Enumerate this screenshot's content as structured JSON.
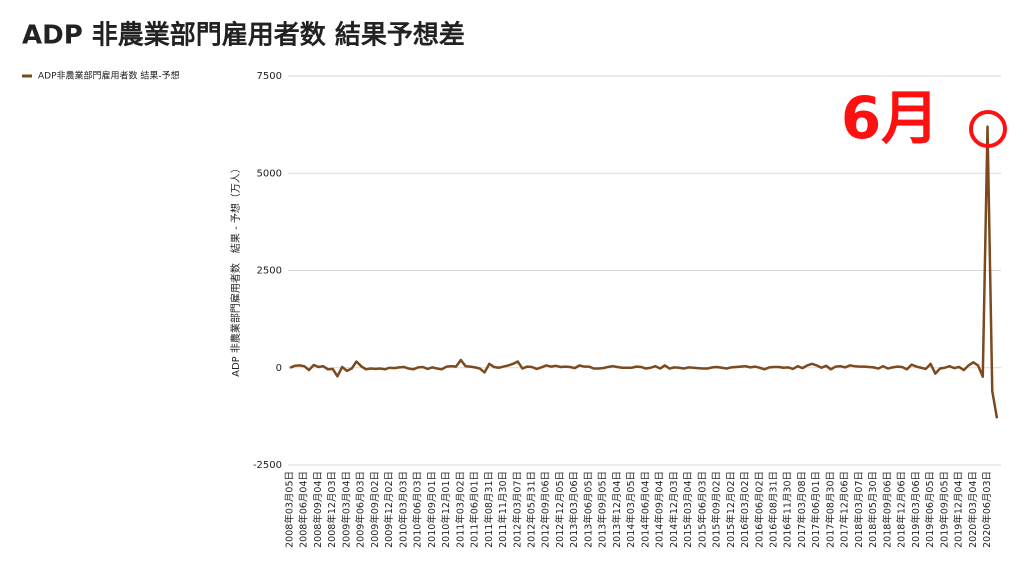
{
  "chart_data": {
    "type": "line",
    "title": "ADP 非農業部門雇用者数 結果予想差",
    "y_label": "ADP 非農業部門雇用者数　結果 - 予想（万人）",
    "annotation": "6月",
    "categories": [
      "2008年03月05日",
      null,
      null,
      "2008年06月04日",
      null,
      null,
      "2008年09月04日",
      null,
      null,
      "2008年12月03日",
      null,
      null,
      "2009年03月04日",
      null,
      null,
      "2009年06月03日",
      null,
      null,
      "2009年09月02日",
      null,
      null,
      "2009年12月02日",
      null,
      null,
      "2010年03月03日",
      null,
      null,
      "2010年06月03日",
      null,
      null,
      "2010年09月01日",
      null,
      null,
      "2010年12月01日",
      null,
      null,
      "2011年03月02日",
      null,
      null,
      "2011年06月01日",
      null,
      null,
      "2011年08月31日",
      null,
      null,
      "2011年11月30日",
      null,
      null,
      "2012年03月07日",
      null,
      null,
      "2012年05月31日",
      null,
      null,
      "2012年09月06日",
      null,
      null,
      "2012年12月05日",
      null,
      null,
      "2013年03月06日",
      null,
      null,
      "2013年06月05日",
      null,
      null,
      "2013年09月05日",
      null,
      null,
      "2013年12月04日",
      null,
      null,
      "2014年03月05日",
      null,
      null,
      "2014年06月04日",
      null,
      null,
      "2014年09月04日",
      null,
      null,
      "2014年12月03日",
      null,
      null,
      "2015年03月04日",
      null,
      null,
      "2015年06月03日",
      null,
      null,
      "2015年09月02日",
      null,
      null,
      "2015年12月02日",
      null,
      null,
      "2016年03月02日",
      null,
      null,
      "2016年06月02日",
      null,
      null,
      "2016年08月31日",
      null,
      null,
      "2016年11月30日",
      null,
      null,
      "2017年03月08日",
      null,
      null,
      "2017年06月01日",
      null,
      null,
      "2017年08月30日",
      null,
      null,
      "2017年12月06日",
      null,
      null,
      "2018年03月07日",
      null,
      null,
      "2018年05月30日",
      null,
      null,
      "2018年09月06日",
      null,
      null,
      "2018年12月06日",
      null,
      null,
      "2019年03月06日",
      null,
      null,
      "2019年06月05日",
      null,
      null,
      "2019年09月05日",
      null,
      null,
      "2019年12月04日",
      null,
      null,
      "2020年03月04日",
      null,
      null,
      "2020年06月03日",
      null,
      null
    ],
    "series": [
      {
        "name": "ADP非農業部門雇用者数 結果-予想",
        "color": "#7b4a1e",
        "values": [
          0,
          50,
          60,
          40,
          -60,
          70,
          20,
          40,
          -40,
          -30,
          -220,
          20,
          -80,
          -20,
          160,
          40,
          -40,
          -20,
          -30,
          -20,
          -40,
          0,
          -10,
          10,
          20,
          -20,
          -40,
          10,
          20,
          -30,
          10,
          -20,
          -40,
          30,
          40,
          30,
          200,
          40,
          30,
          10,
          -20,
          -120,
          100,
          20,
          0,
          30,
          60,
          100,
          160,
          -20,
          30,
          20,
          -30,
          10,
          60,
          30,
          50,
          20,
          30,
          20,
          -10,
          60,
          30,
          30,
          -20,
          -20,
          -10,
          20,
          40,
          20,
          0,
          0,
          0,
          30,
          20,
          -20,
          0,
          40,
          -20,
          60,
          -20,
          10,
          0,
          -20,
          10,
          0,
          -10,
          -20,
          -20,
          10,
          20,
          0,
          -20,
          10,
          20,
          30,
          40,
          10,
          30,
          0,
          -40,
          10,
          20,
          20,
          0,
          10,
          -30,
          40,
          -10,
          60,
          100,
          60,
          0,
          50,
          -40,
          30,
          40,
          10,
          60,
          40,
          30,
          30,
          20,
          10,
          -20,
          40,
          -20,
          10,
          30,
          20,
          -40,
          80,
          30,
          0,
          -30,
          100,
          -150,
          -20,
          0,
          40,
          -10,
          20,
          -60,
          60,
          140,
          60,
          -230,
          6200,
          -600,
          -1300
        ]
      }
    ],
    "ylim": [
      -2500,
      7500
    ],
    "yticks": [
      -2500,
      0,
      2500,
      5000,
      7500
    ],
    "grid": true,
    "legend": "top-left"
  }
}
